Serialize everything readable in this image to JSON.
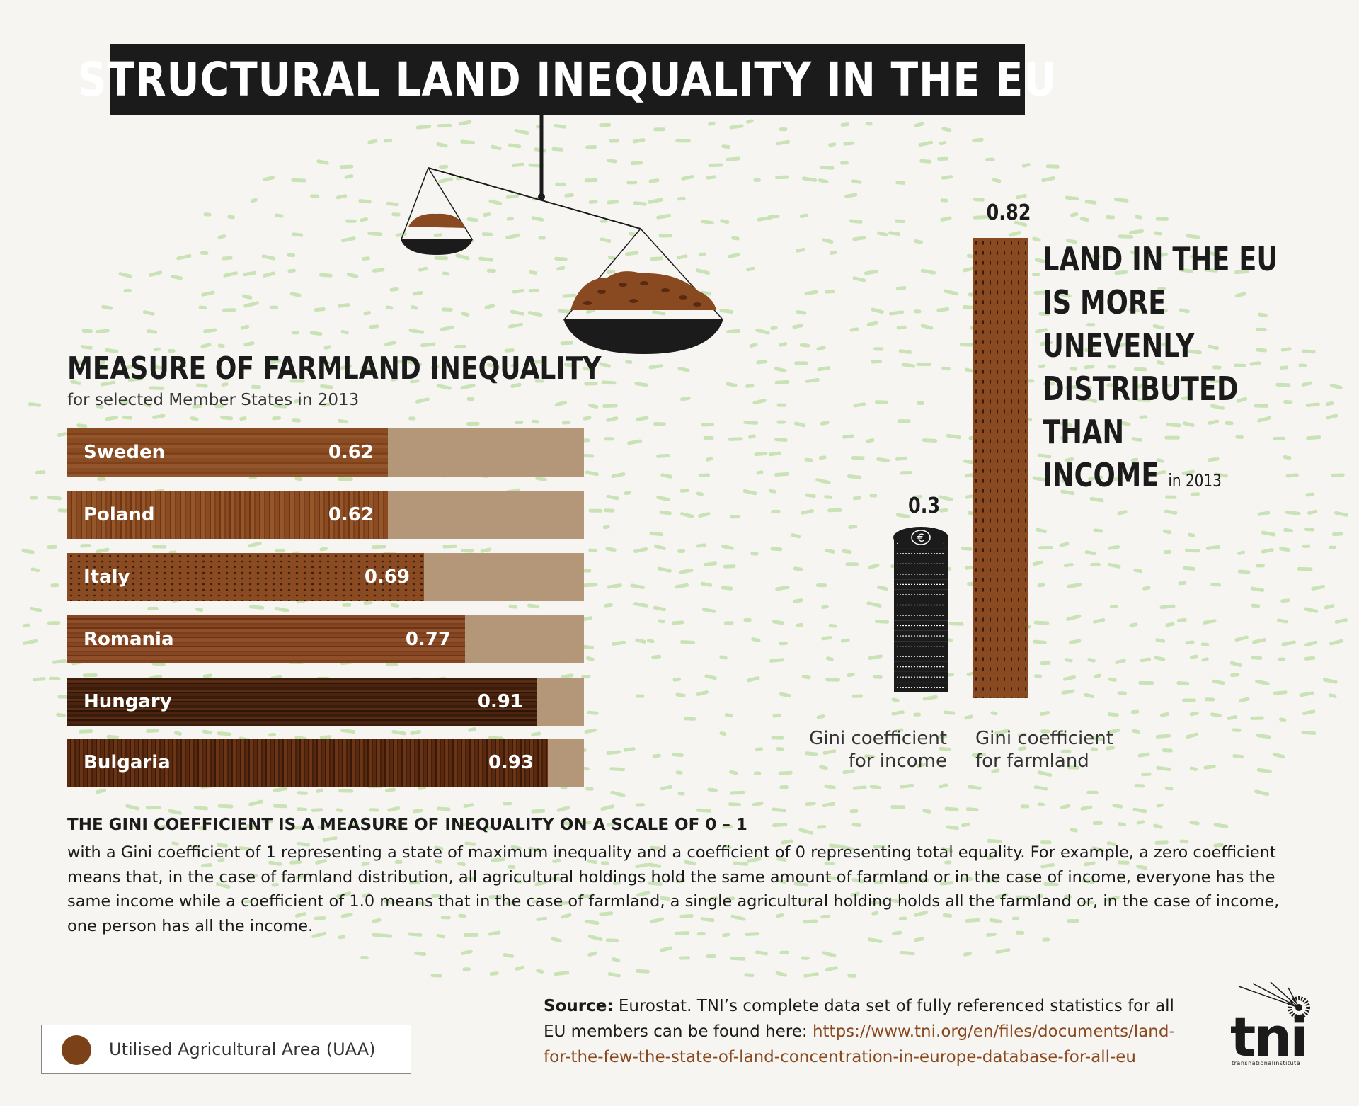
{
  "title": "STRUCTURAL LAND INEQUALITY IN THE EU",
  "chart_data": [
    {
      "type": "bar",
      "orientation": "horizontal",
      "title": "MEASURE OF FARMLAND INEQUALITY",
      "subtitle": "for selected Member States in 2013",
      "categories": [
        "Sweden",
        "Poland",
        "Italy",
        "Romania",
        "Hungary",
        "Bulgaria"
      ],
      "values": [
        0.62,
        0.62,
        0.69,
        0.77,
        0.91,
        0.93
      ],
      "value_labels": [
        "0.62",
        "0.62",
        "0.69",
        "0.77",
        "0.91",
        "0.93"
      ],
      "xlim": [
        0,
        1
      ]
    },
    {
      "type": "bar",
      "orientation": "vertical",
      "categories": [
        "Gini coefficient for income",
        "Gini coefficient for farmland"
      ],
      "values": [
        0.3,
        0.82
      ],
      "value_labels": [
        "0.3",
        "0.82"
      ],
      "ylim": [
        0,
        0.82
      ]
    }
  ],
  "statement": {
    "lines": [
      "LAND IN THE EU",
      "IS MORE",
      "UNEVENLY",
      "DISTRIBUTED THAN",
      "INCOME"
    ],
    "year": "in 2013"
  },
  "gini_labels": {
    "income_line1": "Gini coefficient",
    "income_line2": "for income",
    "farmland_line1": "Gini coefficient",
    "farmland_line2": "for farmland"
  },
  "explanation": {
    "heading": "THE GINI COEFFICIENT IS A MEASURE OF INEQUALITY ON A SCALE OF 0 – 1",
    "body": "with a Gini coefficient of 1 representing a state of maximum inequality and a coefficient of 0 representing total equality. For example, a zero coefficient means that, in the case of farmland distribution, all agricultural holdings hold the same amount of farmland or in the case of income, everyone has the same income while a coefficient of 1.0 means that in the case of farmland, a single agricultural holding holds all the farmland or, in the case of income, one person has all the income."
  },
  "legend": {
    "label": "Utilised Agricultural Area (UAA)",
    "color": "#7b4119"
  },
  "source": {
    "label": "Source:",
    "text": "Eurostat. TNI’s complete data set of fully referenced statistics for all EU members can be found here:",
    "link": "https://www.tni.org/en/files/documents/land-for-the-few-the-state-of-land-concentration-in-europe-database-for-all-eu"
  },
  "logo": {
    "name": "tni",
    "tagline": "transnationalinstitute"
  },
  "colors": {
    "background": "#f6f5f1",
    "bar_track": "#b49678",
    "soil": "#8a4a21",
    "dark": "#1b1b1b",
    "pattern": "#c9e3b6",
    "coin": "#1b1b1b"
  },
  "icons": [
    "euro-coin-icon",
    "balance-scale-icon",
    "dandelion-icon"
  ]
}
